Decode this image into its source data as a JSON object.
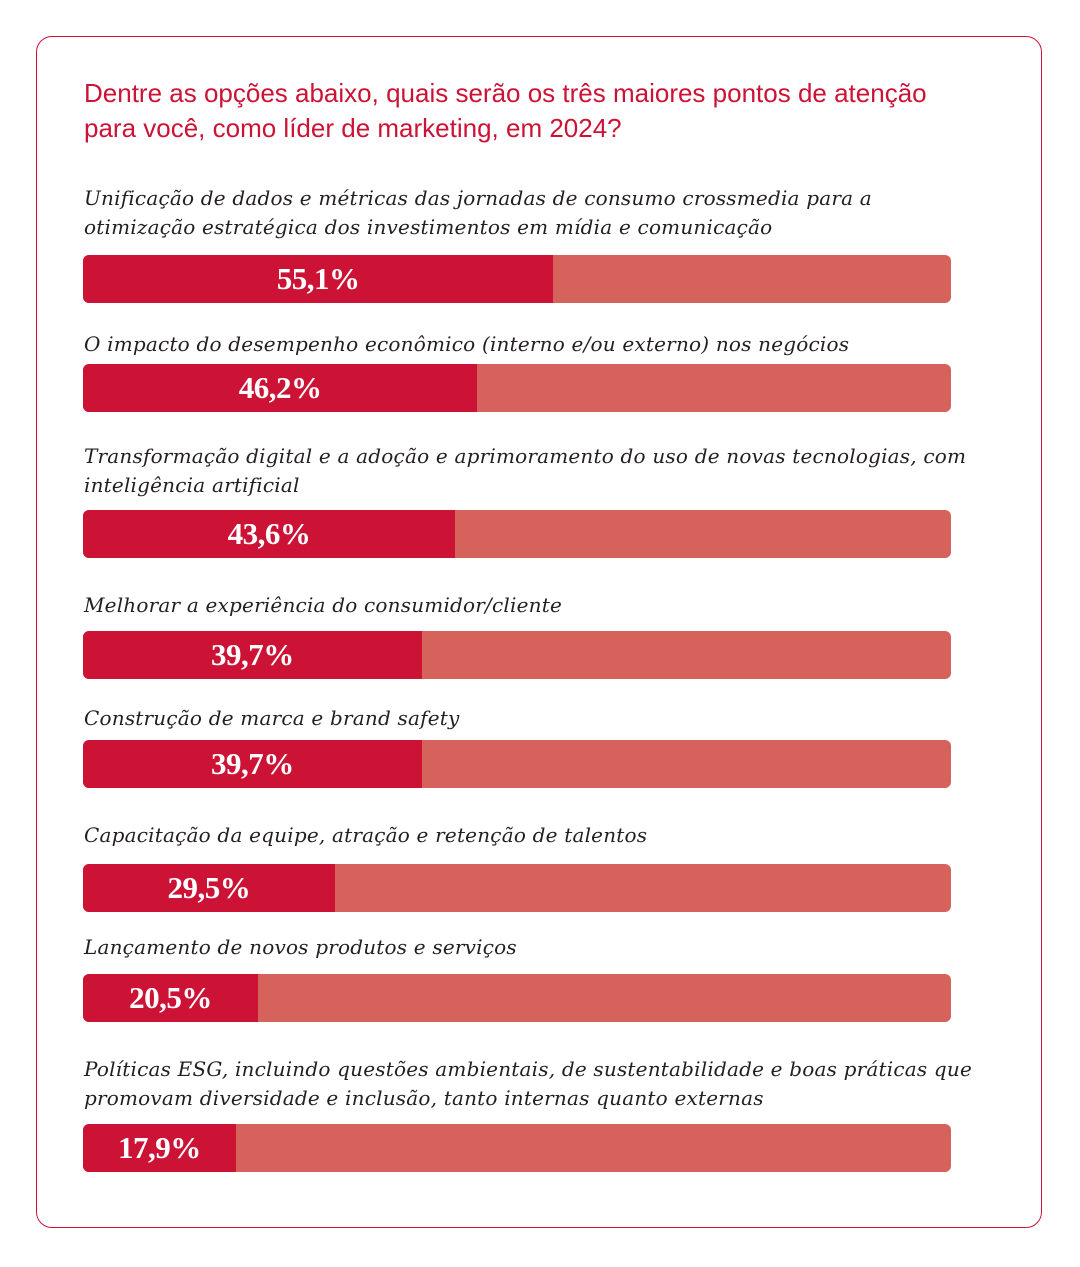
{
  "title": "Dentre as opções abaixo, quais serão os três maiores pontos de atenção para você, como líder de marketing, em 2024?",
  "colors": {
    "accent": "#cc1336",
    "bar_track": "#d6625c",
    "label_text": "#231f20"
  },
  "chart_data": {
    "type": "bar",
    "orientation": "horizontal",
    "title": "Dentre as opções abaixo, quais serão os três maiores pontos de atenção para você, como líder de marketing, em 2024?",
    "items": [
      {
        "label": "Unificação de dados e métricas das jornadas de consumo crossmedia para a otimização estratégica dos investimentos em mídia e comunicação",
        "value": 55.1,
        "value_label": "55,1%"
      },
      {
        "label": "O impacto do desempenho econômico (interno e/ou externo) nos negócios",
        "value": 46.2,
        "value_label": "46,2%"
      },
      {
        "label": "Transformação digital e a adoção e aprimoramento do uso de novas tecnologias, com inteligência artificial",
        "value": 43.6,
        "value_label": "43,6%"
      },
      {
        "label": "Melhorar a experiência do consumidor/cliente",
        "value": 39.7,
        "value_label": "39,7%"
      },
      {
        "label": "Construção de marca e brand safety",
        "value": 39.7,
        "value_label": "39,7%"
      },
      {
        "label": "Capacitação da equipe, atração e retenção de talentos",
        "value": 29.5,
        "value_label": "29,5%"
      },
      {
        "label": "Lançamento de novos produtos e serviços",
        "value": 20.5,
        "value_label": "20,5%"
      },
      {
        "label": "Políticas ESG, incluindo questões ambientais, de sustentabilidade e boas práticas que promovam diversidade e inclusão, tanto internas quanto externas",
        "value": 17.9,
        "value_label": "17,9%"
      }
    ]
  }
}
